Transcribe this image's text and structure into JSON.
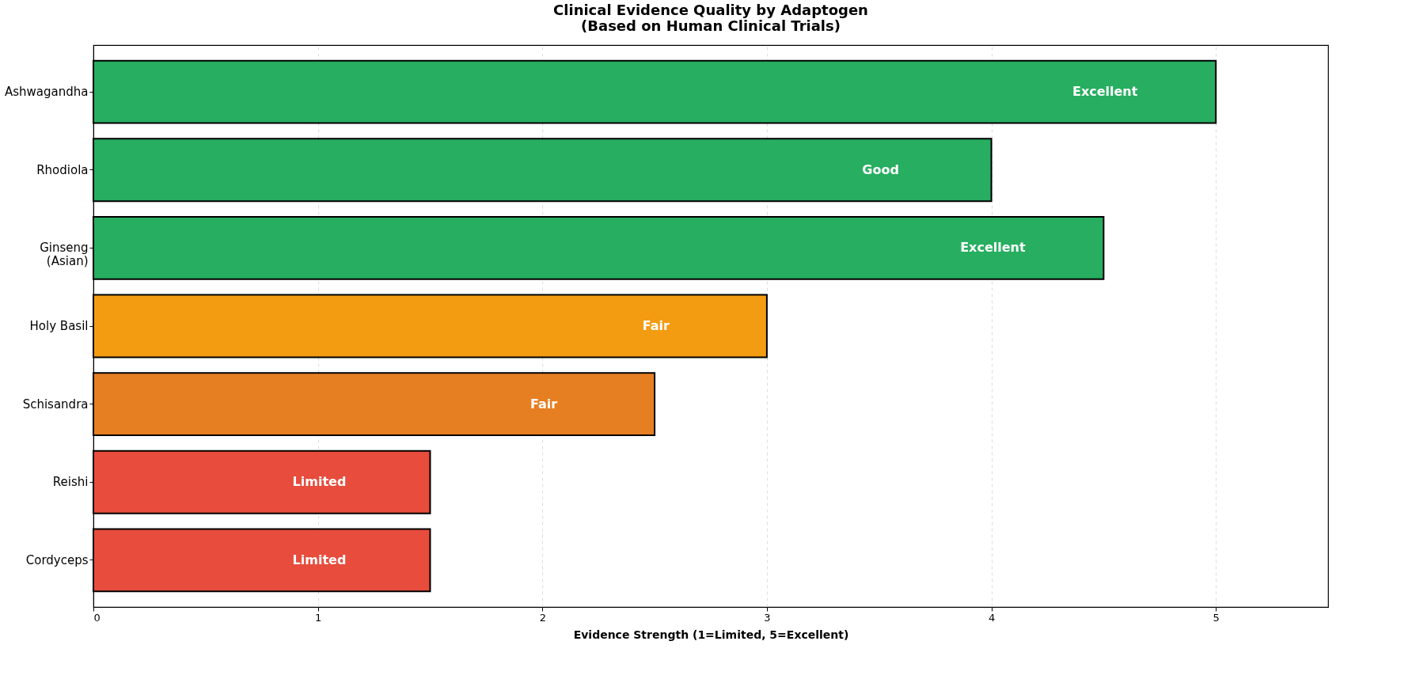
{
  "chart_data": {
    "type": "bar",
    "orientation": "horizontal",
    "title": "Clinical Evidence Quality by Adaptogen\n(Based on Human Clinical Trials)",
    "xlabel": "Evidence Strength (1=Limited, 5=Excellent)",
    "categories": [
      "Ashwagandha",
      "Rhodiola",
      "Ginseng\n(Asian)",
      "Holy Basil",
      "Schisandra",
      "Reishi",
      "Cordyceps"
    ],
    "values": [
      5,
      4,
      4.5,
      3,
      2.5,
      1.5,
      1.5
    ],
    "colors": [
      "#27ae60",
      "#27ae60",
      "#27ae60",
      "#f39c12",
      "#e67e22",
      "#e74c3c",
      "#e74c3c"
    ],
    "value_labels": [
      "Excellent",
      "Good",
      "Excellent",
      "Fair",
      "Fair",
      "Limited",
      "Limited"
    ],
    "xlim": [
      0,
      5.5
    ],
    "xticks": [
      0,
      1,
      2,
      3,
      4,
      5
    ],
    "grid": "x"
  }
}
